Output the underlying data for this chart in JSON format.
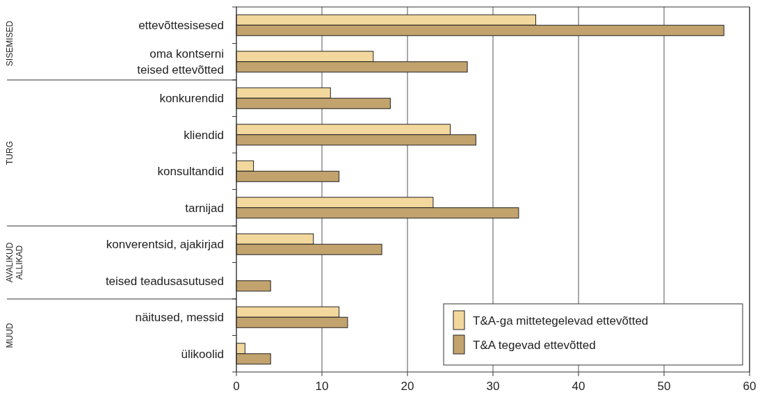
{
  "chart_data": {
    "type": "bar",
    "orientation": "horizontal",
    "categories": [
      "ettevõttesisesed",
      "oma kontserni\nteised ettevõtted",
      "konkurendid",
      "kliendid",
      "konsultandid",
      "tarnijad",
      "konverentsid, ajakirjad",
      "teised teadusasutused",
      "näitused, messid",
      "ülikoolid"
    ],
    "series": [
      {
        "name": "T&A-ga mittetegelevad ettevõtted",
        "color": "#f3d89d",
        "values": [
          35,
          16,
          11,
          25,
          2,
          23,
          9,
          null,
          12,
          1
        ]
      },
      {
        "name": "T&A tegevad ettevõtted",
        "color": "#c2a36d",
        "values": [
          57,
          27,
          18,
          28,
          12,
          33,
          17,
          4,
          13,
          4
        ]
      }
    ],
    "xlim": [
      0,
      60
    ],
    "xticks": [
      0,
      10,
      20,
      30,
      40,
      50,
      60
    ],
    "grid": "x",
    "legend": "bottom right",
    "annotations": [
      "SISEMISED",
      "TURG",
      "AVALIKUD\nALLIKAD",
      "MUUD"
    ]
  }
}
